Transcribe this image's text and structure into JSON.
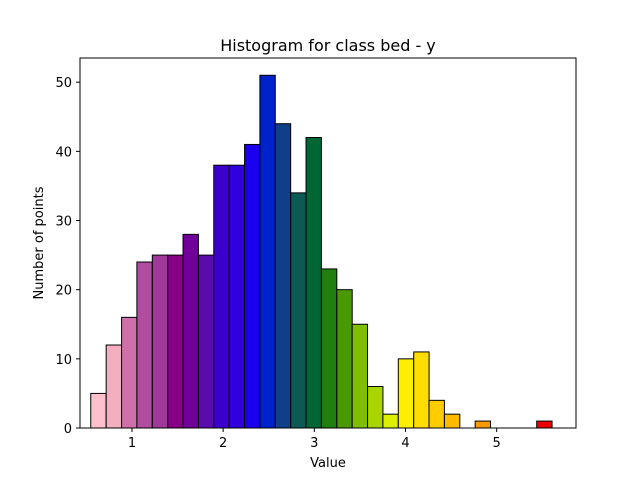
{
  "chart_data": {
    "type": "bar",
    "title": "Histogram for class bed - y",
    "xlabel": "Value",
    "ylabel": "Number of points",
    "xlim": [
      0.43,
      5.87
    ],
    "ylim": [
      0,
      53.5
    ],
    "xticks": [
      1,
      2,
      3,
      4,
      5
    ],
    "yticks": [
      0,
      10,
      20,
      30,
      40,
      50
    ],
    "grid": false,
    "legend": "none",
    "bin_width": 0.1686,
    "bins": [
      {
        "x0": 0.548,
        "value": 5,
        "color": "#ffc0cb"
      },
      {
        "x0": 0.717,
        "value": 12,
        "color": "#f3aec0"
      },
      {
        "x0": 0.886,
        "value": 16,
        "color": "#cf70aa"
      },
      {
        "x0": 1.054,
        "value": 24,
        "color": "#b04da0"
      },
      {
        "x0": 1.223,
        "value": 25,
        "color": "#a03a98"
      },
      {
        "x0": 1.392,
        "value": 25,
        "color": "#880088"
      },
      {
        "x0": 1.56,
        "value": 28,
        "color": "#700099"
      },
      {
        "x0": 1.729,
        "value": 25,
        "color": "#5a0aad"
      },
      {
        "x0": 1.897,
        "value": 38,
        "color": "#3c00cc"
      },
      {
        "x0": 2.066,
        "value": 38,
        "color": "#3000dd"
      },
      {
        "x0": 2.235,
        "value": 41,
        "color": "#1a00ee"
      },
      {
        "x0": 2.403,
        "value": 51,
        "color": "#0022cc"
      },
      {
        "x0": 2.572,
        "value": 44,
        "color": "#0f3f88"
      },
      {
        "x0": 2.741,
        "value": 34,
        "color": "#0b5a55"
      },
      {
        "x0": 2.909,
        "value": 42,
        "color": "#006633"
      },
      {
        "x0": 3.078,
        "value": 23,
        "color": "#1f7f0f"
      },
      {
        "x0": 3.247,
        "value": 20,
        "color": "#4b9900"
      },
      {
        "x0": 3.415,
        "value": 15,
        "color": "#7fbf00"
      },
      {
        "x0": 3.584,
        "value": 6,
        "color": "#a8d400"
      },
      {
        "x0": 3.752,
        "value": 2,
        "color": "#ddf000"
      },
      {
        "x0": 3.921,
        "value": 10,
        "color": "#ffee00"
      },
      {
        "x0": 4.09,
        "value": 11,
        "color": "#ffdd00"
      },
      {
        "x0": 4.258,
        "value": 4,
        "color": "#ffcc00"
      },
      {
        "x0": 4.427,
        "value": 2,
        "color": "#ffbb00"
      },
      {
        "x0": 4.596,
        "value": 0,
        "color": "#ffa500"
      },
      {
        "x0": 4.764,
        "value": 1,
        "color": "#ff9900"
      },
      {
        "x0": 4.933,
        "value": 0,
        "color": "#ff6600"
      },
      {
        "x0": 5.102,
        "value": 0,
        "color": "#ff4400"
      },
      {
        "x0": 5.27,
        "value": 0,
        "color": "#ff2200"
      },
      {
        "x0": 5.439,
        "value": 1,
        "color": "#ee0000"
      }
    ]
  }
}
